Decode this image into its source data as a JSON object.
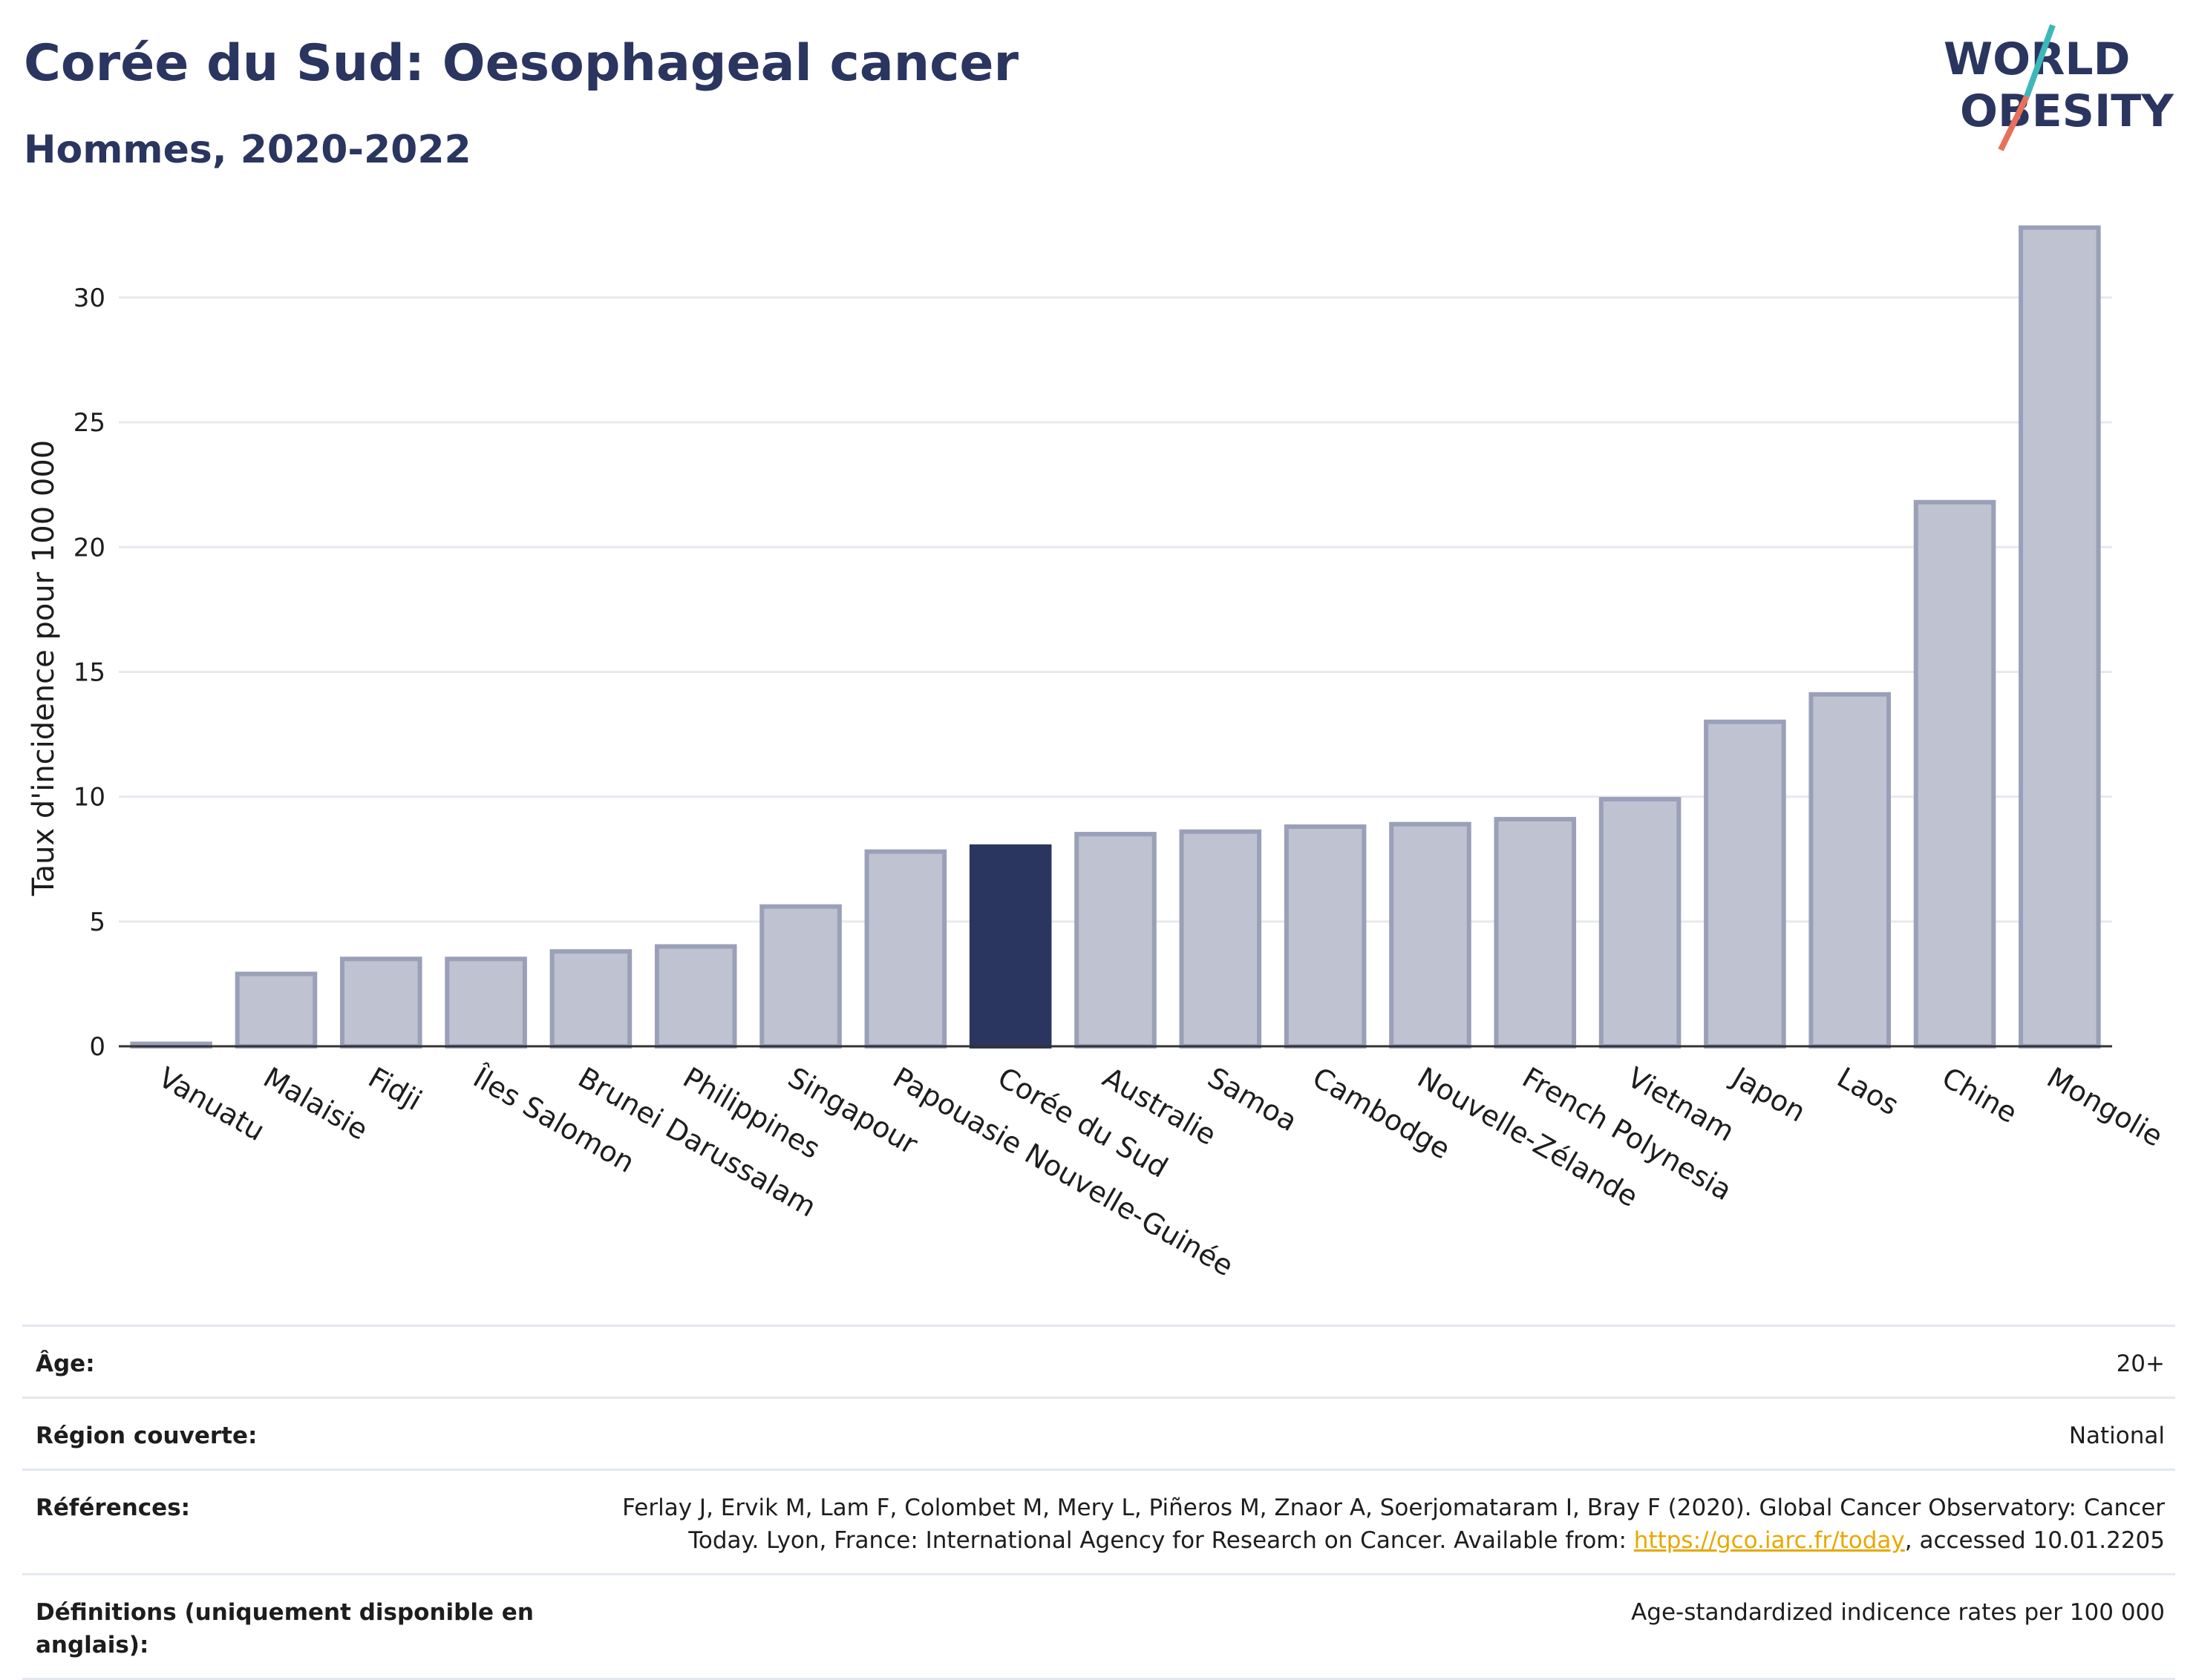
{
  "title": "Corée du Sud: Oesophageal cancer",
  "subtitle": "Hommes, 2020-2022",
  "logo": {
    "line1": "WORLD",
    "line2": "OBESITY"
  },
  "colors": {
    "highlight": "#2a3560",
    "bar": "#bfc2d0",
    "bar_stroke": "#9aa0b8",
    "grid": "#e6e9f0",
    "text": "#2a3560"
  },
  "chart_data": {
    "type": "bar",
    "ylabel": "Taux d'incidence pour 100 000",
    "xlabel": "",
    "ylim": [
      0,
      33
    ],
    "yticks": [
      0,
      5,
      10,
      15,
      20,
      25,
      30
    ],
    "highlight": "Corée du Sud",
    "categories": [
      "Vanuatu",
      "Malaisie",
      "Fidji",
      "Îles Salomon",
      "Brunei Darussalam",
      "Philippines",
      "Singapour",
      "Papouasie Nouvelle-Guinée",
      "Corée du Sud",
      "Australie",
      "Samoa",
      "Cambodge",
      "Nouvelle-Zélande",
      "French Polynesia",
      "Vietnam",
      "Japon",
      "Laos",
      "Chine",
      "Mongolie"
    ],
    "values": [
      0.1,
      2.9,
      3.5,
      3.5,
      3.8,
      4.0,
      5.6,
      7.8,
      8.0,
      8.5,
      8.6,
      8.8,
      8.9,
      9.1,
      9.9,
      13.0,
      14.1,
      21.8,
      32.8
    ],
    "grid": true
  },
  "info": {
    "age_label": "Âge:",
    "age_value": "20+",
    "region_label": "Région couverte:",
    "region_value": "National",
    "refs_label": "Références:",
    "refs_text": "Ferlay J, Ervik M, Lam F, Colombet M, Mery L, Piñeros M, Znaor A, Soerjomataram I, Bray F (2020). Global Cancer Observatory: Cancer Today. Lyon, France: International Agency for Research on Cancer. Available from: ",
    "refs_link": "https://gco.iarc.fr/today",
    "refs_suffix": ", accessed 10.01.2205",
    "defs_label": "Définitions (uniquement disponible en anglais):",
    "defs_value": "Age-standardized indicence rates per 100 000"
  }
}
